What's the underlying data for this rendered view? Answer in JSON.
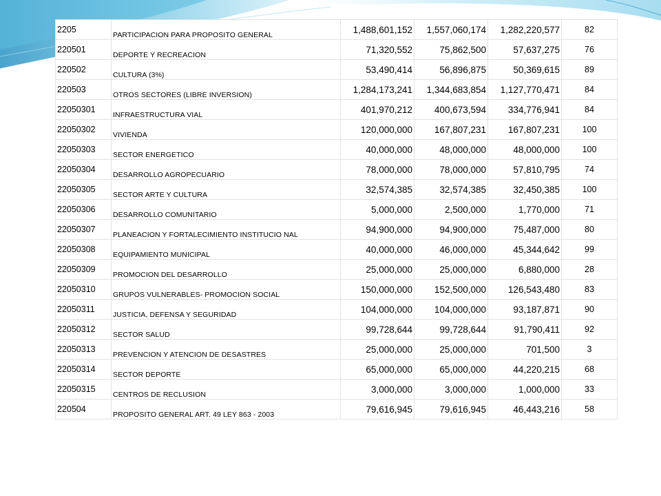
{
  "table": {
    "rows": [
      {
        "code": "2205",
        "desc": "PARTICIPACION PARA PROPOSITO GENERAL",
        "v1": "1,488,601,152",
        "v2": "1,557,060,174",
        "v3": "1,282,220,577",
        "pct": "82"
      },
      {
        "code": "220501",
        "desc": "DEPORTE Y RECREACION",
        "v1": "71,320,552",
        "v2": "75,862,500",
        "v3": "57,637,275",
        "pct": "76"
      },
      {
        "code": "220502",
        "desc": "CULTURA (3%)",
        "v1": "53,490,414",
        "v2": "56,896,875",
        "v3": "50,369,615",
        "pct": "89"
      },
      {
        "code": "220503",
        "desc": "OTROS SECTORES (LIBRE INVERSION)",
        "v1": "1,284,173,241",
        "v2": "1,344,683,854",
        "v3": "1,127,770,471",
        "pct": "84"
      },
      {
        "code": "22050301",
        "desc": "INFRAESTRUCTURA VIAL",
        "v1": "401,970,212",
        "v2": "400,673,594",
        "v3": "334,776,941",
        "pct": "84"
      },
      {
        "code": "22050302",
        "desc": "VIVIENDA",
        "v1": "120,000,000",
        "v2": "167,807,231",
        "v3": "167,807,231",
        "pct": "100"
      },
      {
        "code": "22050303",
        "desc": "SECTOR ENERGETICO",
        "v1": "40,000,000",
        "v2": "48,000,000",
        "v3": "48,000,000",
        "pct": "100"
      },
      {
        "code": "22050304",
        "desc": "DESARROLLO AGROPECUARIO",
        "v1": "78,000,000",
        "v2": "78,000,000",
        "v3": "57,810,795",
        "pct": "74"
      },
      {
        "code": "22050305",
        "desc": "SECTOR ARTE Y CULTURA",
        "v1": "32,574,385",
        "v2": "32,574,385",
        "v3": "32,450,385",
        "pct": "100"
      },
      {
        "code": "22050306",
        "desc": "DESARROLLO COMUNITARIO",
        "v1": "5,000,000",
        "v2": "2,500,000",
        "v3": "1,770,000",
        "pct": "71"
      },
      {
        "code": "22050307",
        "desc": "PLANEACION Y FORTALECIMIENTO INSTITUCIO NAL",
        "v1": "94,900,000",
        "v2": "94,900,000",
        "v3": "75,487,000",
        "pct": "80"
      },
      {
        "code": "22050308",
        "desc": "EQUIPAMIENTO MUNICIPAL",
        "v1": "40,000,000",
        "v2": "46,000,000",
        "v3": "45,344,642",
        "pct": "99"
      },
      {
        "code": "22050309",
        "desc": "PROMOCION DEL DESARROLLO",
        "v1": "25,000,000",
        "v2": "25,000,000",
        "v3": "6,880,000",
        "pct": "28"
      },
      {
        "code": "22050310",
        "desc": "GRUPOS VULNERABLES- PROMOCION SOCIAL",
        "v1": "150,000,000",
        "v2": "152,500,000",
        "v3": "126,543,480",
        "pct": "83"
      },
      {
        "code": "22050311",
        "desc": "JUSTICIA, DEFENSA Y SEGURIDAD",
        "v1": "104,000,000",
        "v2": "104,000,000",
        "v3": "93,187,871",
        "pct": "90"
      },
      {
        "code": "22050312",
        "desc": "SECTOR SALUD",
        "v1": "99,728,644",
        "v2": "99,728,644",
        "v3": "91,790,411",
        "pct": "92"
      },
      {
        "code": "22050313",
        "desc": "PREVENCION Y ATENCION DE DESASTRES",
        "v1": "25,000,000",
        "v2": "25,000,000",
        "v3": "701,500",
        "pct": "3"
      },
      {
        "code": "22050314",
        "desc": "SECTOR DEPORTE",
        "v1": "65,000,000",
        "v2": "65,000,000",
        "v3": "44,220,215",
        "pct": "68"
      },
      {
        "code": "22050315",
        "desc": "CENTROS DE RECLUSION",
        "v1": "3,000,000",
        "v2": "3,000,000",
        "v3": "1,000,000",
        "pct": "33"
      },
      {
        "code": "220504",
        "desc": "PROPOSITO GENERAL ART. 49 LEY 863 - 2003",
        "v1": "79,616,945",
        "v2": "79,616,945",
        "v3": "46,443,216",
        "pct": "58"
      }
    ]
  },
  "colors": {
    "accent": "#4fb0d6",
    "accent_light": "#bfe6f4",
    "grid": "#e2e2e2"
  }
}
